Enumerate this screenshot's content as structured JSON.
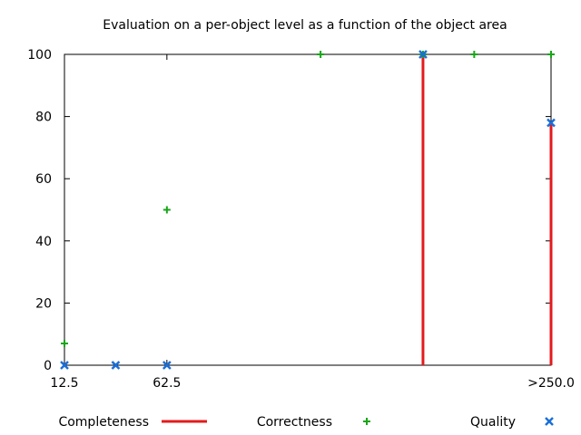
{
  "chart_data": {
    "type": "scatter",
    "title": "Evaluation on a per-object level as a function of the object area",
    "xlabel": "",
    "ylabel": "",
    "ylim": [
      0,
      100
    ],
    "yticks": [
      0,
      20,
      40,
      60,
      80,
      100
    ],
    "xticks": [
      {
        "label": "12.5",
        "x": 0
      },
      {
        "label": "62.5",
        "x": 4
      },
      {
        "label": ">250.0",
        "x": 19
      }
    ],
    "xlim": [
      0,
      19
    ],
    "grid": false,
    "legend_position": "bottom",
    "series": [
      {
        "name": "Completeness",
        "style": "impulses",
        "color": "#e41a1c",
        "points": [
          {
            "x": 0,
            "y": 0
          },
          {
            "x": 2,
            "y": 0
          },
          {
            "x": 4,
            "y": 0
          },
          {
            "x": 14,
            "y": 100
          },
          {
            "x": 19,
            "y": 78
          }
        ]
      },
      {
        "name": "Correctness",
        "style": "plus",
        "color": "#1aa51a",
        "points": [
          {
            "x": 0,
            "y": 7
          },
          {
            "x": 4,
            "y": 50
          },
          {
            "x": 10,
            "y": 100
          },
          {
            "x": 14,
            "y": 100
          },
          {
            "x": 16,
            "y": 100
          },
          {
            "x": 19,
            "y": 100
          }
        ]
      },
      {
        "name": "Quality",
        "style": "cross",
        "color": "#1a6fd8",
        "points": [
          {
            "x": 0,
            "y": 0
          },
          {
            "x": 2,
            "y": 0
          },
          {
            "x": 4,
            "y": 0
          },
          {
            "x": 14,
            "y": 100
          },
          {
            "x": 19,
            "y": 78
          }
        ]
      }
    ]
  }
}
